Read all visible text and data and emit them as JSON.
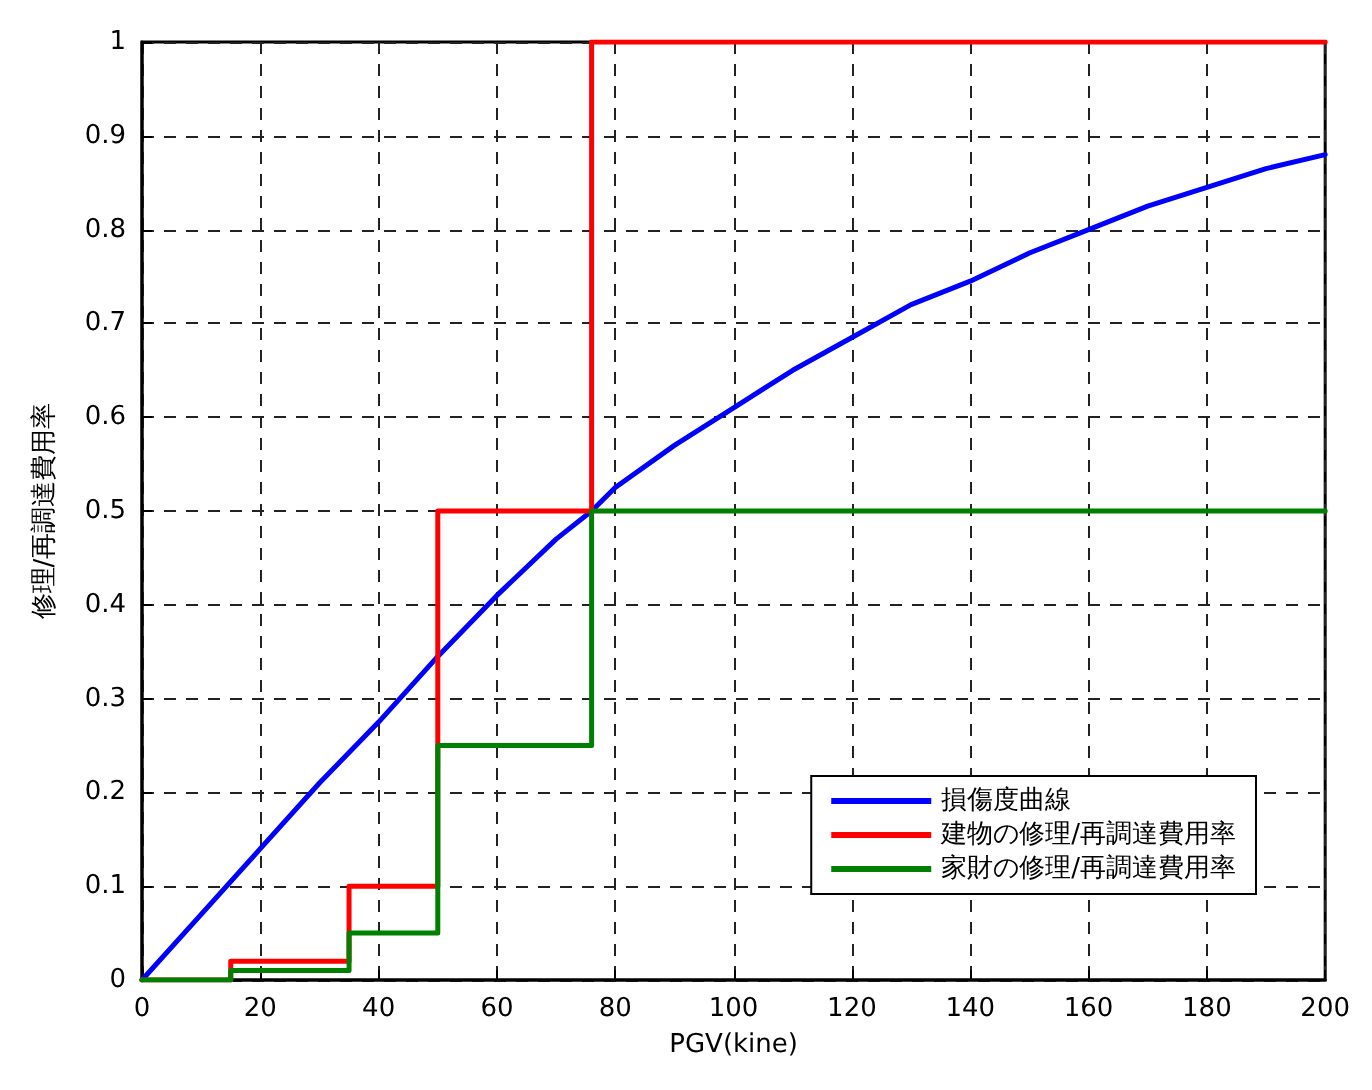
{
  "chart_data": {
    "type": "line",
    "xlabel": "PGV(kine)",
    "ylabel": "修理/再調達費用率",
    "xlim": [
      0,
      200
    ],
    "ylim": [
      0,
      1
    ],
    "xticks": [
      0,
      20,
      40,
      60,
      80,
      100,
      120,
      140,
      160,
      180,
      200
    ],
    "yticks": [
      0,
      0.1,
      0.2,
      0.3,
      0.4,
      0.5,
      0.6,
      0.7,
      0.8,
      0.9,
      1
    ],
    "grid": true,
    "legend": "bottom right",
    "line_style": "solid",
    "marker": "none",
    "series": [
      {
        "name": "損傷度曲線",
        "color": "#0000ff",
        "x": [
          0,
          10,
          20,
          30,
          40,
          50,
          60,
          70,
          76,
          80,
          90,
          100,
          110,
          120,
          130,
          140,
          150,
          160,
          170,
          180,
          190,
          200
        ],
        "values": [
          0,
          0.07,
          0.14,
          0.21,
          0.275,
          0.345,
          0.41,
          0.47,
          0.5,
          0.525,
          0.57,
          0.61,
          0.65,
          0.685,
          0.72,
          0.745,
          0.775,
          0.8,
          0.825,
          0.845,
          0.865,
          0.88
        ]
      },
      {
        "name": "建物の修理/再調達費用率",
        "color": "#ff0000",
        "type": "step",
        "x": [
          0,
          15,
          35,
          50,
          76,
          200
        ],
        "values": [
          0,
          0.02,
          0.1,
          0.5,
          1,
          1
        ]
      },
      {
        "name": "家財の修理/再調達費用率",
        "color": "#008000",
        "type": "step",
        "x": [
          0,
          15,
          35,
          50,
          76,
          200
        ],
        "values": [
          0,
          0.01,
          0.05,
          0.25,
          0.5,
          0.5
        ]
      }
    ]
  }
}
